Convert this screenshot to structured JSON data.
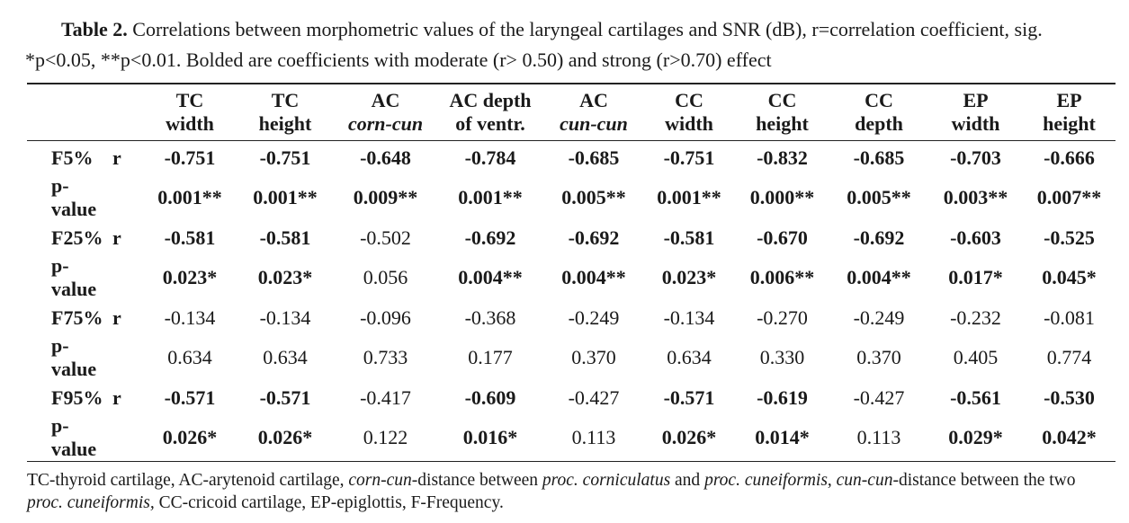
{
  "caption": {
    "label": "Table 2.",
    "text": " Correlations between morphometric values of the laryngeal cartilages and SNR (dB), r=correlation coefficient, sig. *p<0.05, **p<0.01. Bolded are coefficients with moderate (r> 0.50) and strong (r>0.70) effect"
  },
  "headers": [
    {
      "l1": "TC",
      "l2": "width",
      "it": false
    },
    {
      "l1": "TC",
      "l2": "height",
      "it": false
    },
    {
      "l1": "AC",
      "l2": "corn-cun",
      "it": true
    },
    {
      "l1": "AC depth",
      "l2": "of ventr.",
      "it": false
    },
    {
      "l1": "AC",
      "l2": "cun-cun",
      "it": true
    },
    {
      "l1": "CC",
      "l2": "width",
      "it": false
    },
    {
      "l1": "CC",
      "l2": "height",
      "it": false
    },
    {
      "l1": "CC",
      "l2": "depth",
      "it": false
    },
    {
      "l1": "EP",
      "l2": "width",
      "it": false
    },
    {
      "l1": "EP",
      "l2": "height",
      "it": false
    }
  ],
  "rows": [
    {
      "label": "F5%",
      "sub": "r",
      "cells": [
        [
          "-0.751",
          1
        ],
        [
          "-0.751",
          1
        ],
        [
          "-0.648",
          1
        ],
        [
          "-0.784",
          1
        ],
        [
          "-0.685",
          1
        ],
        [
          "-0.751",
          1
        ],
        [
          "-0.832",
          1
        ],
        [
          "-0.685",
          1
        ],
        [
          "-0.703",
          1
        ],
        [
          "-0.666",
          1
        ]
      ]
    },
    {
      "label": "p-value",
      "sub": "",
      "cells": [
        [
          "0.001**",
          1
        ],
        [
          "0.001**",
          1
        ],
        [
          "0.009**",
          1
        ],
        [
          "0.001**",
          1
        ],
        [
          "0.005**",
          1
        ],
        [
          "0.001**",
          1
        ],
        [
          "0.000**",
          1
        ],
        [
          "0.005**",
          1
        ],
        [
          "0.003**",
          1
        ],
        [
          "0.007**",
          1
        ]
      ]
    },
    {
      "label": "F25%",
      "sub": "r",
      "cells": [
        [
          "-0.581",
          1
        ],
        [
          "-0.581",
          1
        ],
        [
          "-0.502",
          0
        ],
        [
          "-0.692",
          1
        ],
        [
          "-0.692",
          1
        ],
        [
          "-0.581",
          1
        ],
        [
          "-0.670",
          1
        ],
        [
          "-0.692",
          1
        ],
        [
          "-0.603",
          1
        ],
        [
          "-0.525",
          1
        ]
      ]
    },
    {
      "label": "p-value",
      "sub": "",
      "cells": [
        [
          "0.023*",
          1
        ],
        [
          "0.023*",
          1
        ],
        [
          "0.056",
          0
        ],
        [
          "0.004**",
          1
        ],
        [
          "0.004**",
          1
        ],
        [
          "0.023*",
          1
        ],
        [
          "0.006**",
          1
        ],
        [
          "0.004**",
          1
        ],
        [
          "0.017*",
          1
        ],
        [
          "0.045*",
          1
        ]
      ]
    },
    {
      "label": "F75%",
      "sub": "r",
      "cells": [
        [
          "-0.134",
          0
        ],
        [
          "-0.134",
          0
        ],
        [
          "-0.096",
          0
        ],
        [
          "-0.368",
          0
        ],
        [
          "-0.249",
          0
        ],
        [
          "-0.134",
          0
        ],
        [
          "-0.270",
          0
        ],
        [
          "-0.249",
          0
        ],
        [
          "-0.232",
          0
        ],
        [
          "-0.081",
          0
        ]
      ]
    },
    {
      "label": "p-value",
      "sub": "",
      "cells": [
        [
          "0.634",
          0
        ],
        [
          "0.634",
          0
        ],
        [
          "0.733",
          0
        ],
        [
          "0.177",
          0
        ],
        [
          "0.370",
          0
        ],
        [
          "0.634",
          0
        ],
        [
          "0.330",
          0
        ],
        [
          "0.370",
          0
        ],
        [
          "0.405",
          0
        ],
        [
          "0.774",
          0
        ]
      ]
    },
    {
      "label": "F95%",
      "sub": "r",
      "cells": [
        [
          "-0.571",
          1
        ],
        [
          "-0.571",
          1
        ],
        [
          "-0.417",
          0
        ],
        [
          "-0.609",
          1
        ],
        [
          "-0.427",
          0
        ],
        [
          "-0.571",
          1
        ],
        [
          "-0.619",
          1
        ],
        [
          "-0.427",
          0
        ],
        [
          "-0.561",
          1
        ],
        [
          "-0.530",
          1
        ]
      ]
    },
    {
      "label": "p-value",
      "sub": "",
      "cells": [
        [
          "0.026*",
          1
        ],
        [
          "0.026*",
          1
        ],
        [
          "0.122",
          0
        ],
        [
          "0.016*",
          1
        ],
        [
          "0.113",
          0
        ],
        [
          "0.026*",
          1
        ],
        [
          "0.014*",
          1
        ],
        [
          "0.113",
          0
        ],
        [
          "0.029*",
          1
        ],
        [
          "0.042*",
          1
        ]
      ]
    }
  ],
  "footnote": [
    {
      "t": "TC-thyroid cartilage, AC-arytenoid cartilage, ",
      "i": false
    },
    {
      "t": "corn-cun",
      "i": true
    },
    {
      "t": "-distance between ",
      "i": false
    },
    {
      "t": "proc. corniculatus",
      "i": true
    },
    {
      "t": " and ",
      "i": false
    },
    {
      "t": "proc. cuneiformis",
      "i": true
    },
    {
      "t": ", ",
      "i": false
    },
    {
      "t": "cun-cun",
      "i": true
    },
    {
      "t": "-distance between the two ",
      "i": false
    },
    {
      "t": "proc. cuneiformis,",
      "i": true
    },
    {
      "t": " CC-cricoid cartilage, EP-epiglottis, F-Frequency.",
      "i": false
    }
  ]
}
